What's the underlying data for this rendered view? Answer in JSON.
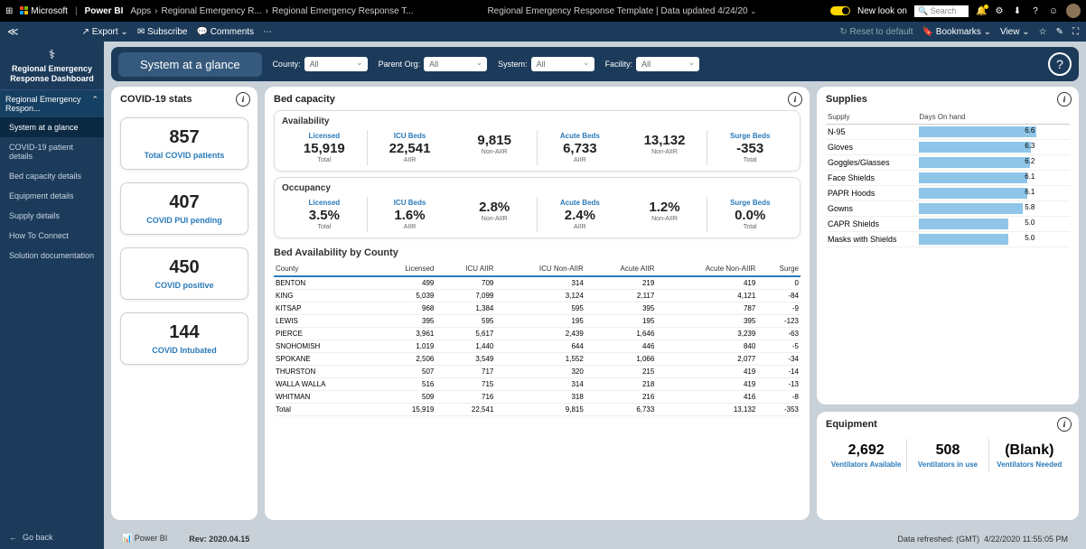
{
  "topbar": {
    "ms": "Microsoft",
    "product": "Power BI",
    "crumbs": [
      "Apps",
      "Regional Emergency R...",
      "Regional Emergency Response T..."
    ],
    "center": "Regional Emergency Response Template | Data updated 4/24/20",
    "newlook": "New look on",
    "search_ph": "Search"
  },
  "actionbar": {
    "export": "Export",
    "subscribe": "Subscribe",
    "comments": "Comments",
    "reset": "Reset to default",
    "bookmarks": "Bookmarks",
    "view": "View"
  },
  "sidebar": {
    "title": "Regional Emergency Response Dashboard",
    "header": "Regional Emergency Respon...",
    "items": [
      "System at a glance",
      "COVID-19 patient details",
      "Bed capacity details",
      "Equipment details",
      "Supply details",
      "How To Connect",
      "Solution documentation"
    ],
    "goback": "Go back"
  },
  "title": "System at a glance",
  "filters": {
    "county_lbl": "County:",
    "county_val": "All",
    "parent_lbl": "Parent Org:",
    "parent_val": "All",
    "system_lbl": "System:",
    "system_val": "All",
    "facility_lbl": "Facility:",
    "facility_val": "All"
  },
  "covid": {
    "title": "COVID-19 stats",
    "cards": [
      {
        "val": "857",
        "lbl": "Total COVID patients"
      },
      {
        "val": "407",
        "lbl": "COVID PUI pending"
      },
      {
        "val": "450",
        "lbl": "COVID positive"
      },
      {
        "val": "144",
        "lbl": "COVID Intubated"
      }
    ]
  },
  "bed": {
    "title": "Bed capacity",
    "avail_title": "Availability",
    "occ_title": "Occupancy",
    "sections": [
      "Licensed",
      "ICU Beds",
      "Acute Beds",
      "Surge Beds"
    ],
    "avail": [
      {
        "v": "15,919",
        "s": "Total"
      },
      {
        "v": "22,541",
        "s": "AIIR"
      },
      {
        "v": "9,815",
        "s": "Non-AIIR"
      },
      {
        "v": "6,733",
        "s": "AIIR"
      },
      {
        "v": "13,132",
        "s": "Non-AIIR"
      },
      {
        "v": "-353",
        "s": "Total"
      }
    ],
    "occ": [
      {
        "v": "3.5%",
        "s": "Total"
      },
      {
        "v": "1.6%",
        "s": "AIIR"
      },
      {
        "v": "2.8%",
        "s": "Non-AIIR"
      },
      {
        "v": "2.4%",
        "s": "AIIR"
      },
      {
        "v": "1.2%",
        "s": "Non-AIIR"
      },
      {
        "v": "0.0%",
        "s": "Total"
      }
    ],
    "county_title": "Bed Availability by County",
    "cols": [
      "County",
      "Licensed",
      "ICU AIIR",
      "ICU Non-AIIR",
      "Acute AIIR",
      "Acute Non-AIIR",
      "Surge"
    ],
    "rows": [
      [
        "BENTON",
        "499",
        "709",
        "314",
        "219",
        "419",
        "0"
      ],
      [
        "KING",
        "5,039",
        "7,099",
        "3,124",
        "2,117",
        "4,121",
        "-84"
      ],
      [
        "KITSAP",
        "968",
        "1,384",
        "595",
        "395",
        "787",
        "-9"
      ],
      [
        "LEWIS",
        "395",
        "595",
        "195",
        "195",
        "395",
        "-123"
      ],
      [
        "PIERCE",
        "3,961",
        "5,617",
        "2,439",
        "1,646",
        "3,239",
        "-63"
      ],
      [
        "SNOHOMISH",
        "1,019",
        "1,440",
        "644",
        "446",
        "840",
        "-5"
      ],
      [
        "SPOKANE",
        "2,506",
        "3,549",
        "1,552",
        "1,066",
        "2,077",
        "-34"
      ],
      [
        "THURSTON",
        "507",
        "717",
        "320",
        "215",
        "419",
        "-14"
      ],
      [
        "WALLA WALLA",
        "516",
        "715",
        "314",
        "218",
        "419",
        "-13"
      ],
      [
        "WHITMAN",
        "509",
        "716",
        "318",
        "216",
        "416",
        "-8"
      ]
    ],
    "total_row": [
      "Total",
      "15,919",
      "22,541",
      "9,815",
      "6,733",
      "13,132",
      "-353"
    ]
  },
  "supplies": {
    "title": "Supplies",
    "cols": [
      "Supply",
      "Days On hand"
    ],
    "rows": [
      {
        "n": "N-95",
        "v": "6.6",
        "p": 100
      },
      {
        "n": "Gloves",
        "v": "6.3",
        "p": 95
      },
      {
        "n": "Goggles/Glasses",
        "v": "6.2",
        "p": 94
      },
      {
        "n": "Face Shields",
        "v": "6.1",
        "p": 92
      },
      {
        "n": "PAPR Hoods",
        "v": "6.1",
        "p": 92
      },
      {
        "n": "Gowns",
        "v": "5.8",
        "p": 88
      },
      {
        "n": "CAPR Shields",
        "v": "5.0",
        "p": 76
      },
      {
        "n": "Masks with Shields",
        "v": "5.0",
        "p": 76
      }
    ]
  },
  "equip": {
    "title": "Equipment",
    "items": [
      {
        "v": "2,692",
        "l": "Ventilators Available"
      },
      {
        "v": "508",
        "l": "Ventilators in use"
      },
      {
        "v": "(Blank)",
        "l": "Ventilators Needed"
      }
    ]
  },
  "footer": {
    "pbi": "Power BI",
    "rev": "Rev: 2020.04.15",
    "refreshed_lbl": "Data refreshed: (GMT)",
    "refreshed_val": "4/22/2020 11:55:05 PM"
  }
}
